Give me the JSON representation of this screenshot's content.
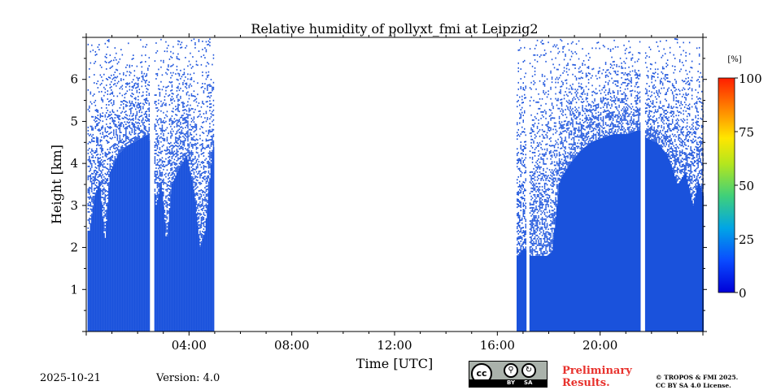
{
  "chart_data": {
    "type": "heatmap",
    "title": "Relative humidity of pollyxt_fmi at Leipzig2",
    "xlabel": "Time [UTC]",
    "ylabel": "Height [km]",
    "xlim_hours": [
      0,
      24
    ],
    "ylim_km": [
      0,
      7
    ],
    "x_ticks": [
      "04:00",
      "08:00",
      "12:00",
      "16:00",
      "20:00"
    ],
    "y_ticks": [
      "1",
      "2",
      "3",
      "4",
      "5",
      "6"
    ],
    "colorbar": {
      "unit_label": "[%]",
      "range": [
        0,
        100
      ],
      "ticks": [
        "0",
        "25",
        "50",
        "75",
        "100"
      ],
      "colormap": "jet"
    },
    "data_color": "#1a52dc",
    "segments": [
      {
        "start_hour": 0.05,
        "end_hour": 2.45,
        "value_pct": 0
      },
      {
        "start_hour": 2.65,
        "end_hour": 4.95,
        "value_pct": 0
      },
      {
        "start_hour": 16.75,
        "end_hour": 17.1,
        "value_pct": 0
      },
      {
        "start_hour": 17.25,
        "end_hour": 21.55,
        "value_pct": 0
      },
      {
        "start_hour": 21.75,
        "end_hour": 24.0,
        "value_pct": 0
      }
    ],
    "solid_top_profile": [
      [
        0.1,
        2.4
      ],
      [
        0.3,
        3.2
      ],
      [
        0.5,
        3.6
      ],
      [
        0.7,
        2.1
      ],
      [
        0.9,
        3.8
      ],
      [
        1.2,
        4.2
      ],
      [
        1.5,
        4.4
      ],
      [
        1.8,
        4.5
      ],
      [
        2.1,
        4.6
      ],
      [
        2.4,
        4.7
      ],
      [
        2.7,
        3.0
      ],
      [
        2.9,
        3.6
      ],
      [
        3.1,
        2.1
      ],
      [
        3.3,
        3.5
      ],
      [
        3.6,
        3.9
      ],
      [
        3.9,
        4.2
      ],
      [
        4.2,
        3.2
      ],
      [
        4.4,
        2.0
      ],
      [
        4.6,
        2.4
      ],
      [
        4.9,
        4.4
      ],
      [
        16.8,
        1.8
      ],
      [
        17.0,
        2.0
      ],
      [
        17.3,
        1.8
      ],
      [
        17.6,
        1.8
      ],
      [
        17.9,
        1.8
      ],
      [
        18.1,
        1.9
      ],
      [
        18.4,
        3.6
      ],
      [
        18.8,
        4.0
      ],
      [
        19.2,
        4.3
      ],
      [
        19.6,
        4.5
      ],
      [
        20.0,
        4.6
      ],
      [
        20.5,
        4.7
      ],
      [
        21.0,
        4.7
      ],
      [
        21.5,
        4.8
      ],
      [
        21.8,
        4.6
      ],
      [
        22.2,
        4.5
      ],
      [
        22.6,
        4.2
      ],
      [
        23.0,
        3.5
      ],
      [
        23.3,
        3.8
      ],
      [
        23.6,
        3.0
      ],
      [
        23.8,
        3.6
      ],
      [
        24.0,
        3.2
      ]
    ]
  },
  "footer": {
    "date": "2025-10-21",
    "version": "Version: 4.0",
    "license_badge": {
      "by": "BY",
      "sa": "SA",
      "cc": "cc"
    },
    "preliminary_line1": "Preliminary",
    "preliminary_line2": "Results.",
    "copyright_line1": "© TROPOS & FMI 2025.",
    "copyright_line2": "CC BY SA 4.0 License.",
    "preliminary_color": "#e8322d"
  }
}
